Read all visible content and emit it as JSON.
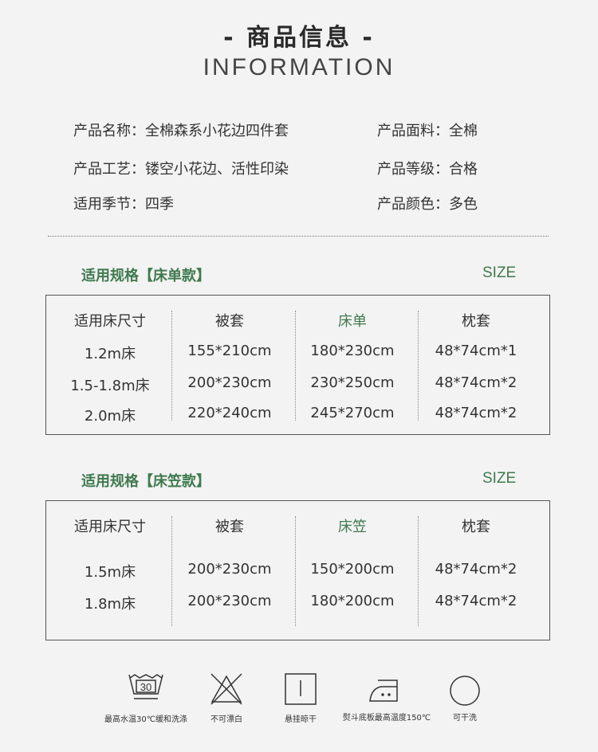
{
  "header": {
    "title": "- 商品信息 -",
    "subtitle": "INFORMATION"
  },
  "info": [
    {
      "label": "产品名称：全棉森系小花边四件套"
    },
    {
      "label": "产品面料：全棉"
    },
    {
      "label": "产品工艺：镂空小花边、活性印染"
    },
    {
      "label": "产品等级：合格"
    },
    {
      "label": "适用季节：四季"
    },
    {
      "label": "产品颜色：多色"
    }
  ],
  "colors": {
    "accent": "#3f7a4f",
    "background": "#f3f3f3",
    "text": "#333333"
  },
  "table1": {
    "title": "适用规格【床单款】",
    "size": "SIZE",
    "headers": [
      "适用床尺寸",
      "被套",
      "床单",
      "枕套"
    ],
    "rows": [
      [
        "1.2m床",
        "155*210cm",
        "180*230cm",
        "48*74cm*1"
      ],
      [
        "1.5-1.8m床",
        "200*230cm",
        "230*250cm",
        "48*74cm*2"
      ],
      [
        "2.0m床",
        "220*240cm",
        "245*270cm",
        "48*74cm*2"
      ]
    ]
  },
  "table2": {
    "title": "适用规格【床笠款】",
    "size": "SIZE",
    "headers": [
      "适用床尺寸",
      "被套",
      "床笠",
      "枕套"
    ],
    "rows": [
      [
        "1.5m床",
        "200*230cm",
        "150*200cm",
        "48*74cm*2"
      ],
      [
        "1.8m床",
        "200*230cm",
        "180*200cm",
        "48*74cm*2"
      ]
    ]
  },
  "care": [
    {
      "icon": "wash-30-icon",
      "number": "30",
      "label": "最高水温30℃缓和洗涤"
    },
    {
      "icon": "no-bleach-icon",
      "label": "不可漂白"
    },
    {
      "icon": "hang-dry-icon",
      "label": "悬挂晾干"
    },
    {
      "icon": "iron-150-icon",
      "label": "熨斗底板最高温度150℃"
    },
    {
      "icon": "dry-clean-icon",
      "label": "可干洗"
    }
  ]
}
